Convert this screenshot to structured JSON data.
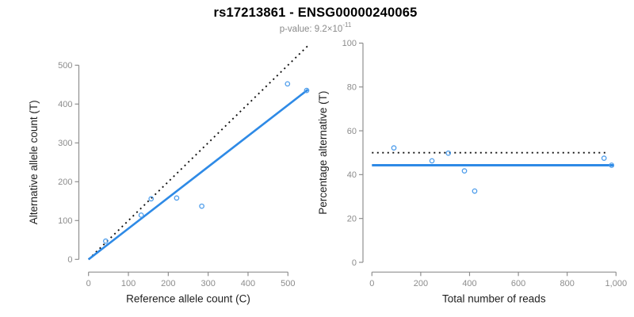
{
  "header": {
    "title": "rs17213861 - ENSG00000240065",
    "subtitle_main": "p-value: 9.2×10",
    "subtitle_exponent": "-11"
  },
  "colors": {
    "background": "#ffffff",
    "title": "#000000",
    "subtitle": "#8a8a8a",
    "axis_line": "#8f8f8f",
    "tick_label": "#8c8c8c",
    "axis_title": "#1f1f1f",
    "fit_line_blue": "#2e8ae6",
    "point_blue": "#4e9deb",
    "reference_line_black": "#111111"
  },
  "chart_data": [
    {
      "type": "scatter",
      "name": "allele-counts-scatter",
      "xlabel": "Reference allele count (C)",
      "ylabel": "Alternative allele count (T)",
      "xlim": [
        0,
        560
      ],
      "ylim": [
        0,
        560
      ],
      "grid": false,
      "legend": null,
      "x_ticks": [
        0,
        100,
        200,
        300,
        400,
        500
      ],
      "x_tick_labels": [
        "0",
        "100",
        "200",
        "300",
        "400",
        "500"
      ],
      "y_ticks": [
        0,
        100,
        200,
        300,
        400,
        500
      ],
      "y_tick_labels": [
        "0",
        "100",
        "200",
        "300",
        "400",
        "500"
      ],
      "points": [
        [
          43,
          47
        ],
        [
          132,
          114
        ],
        [
          157,
          156
        ],
        [
          221,
          158
        ],
        [
          284,
          137
        ],
        [
          499,
          452
        ],
        [
          547,
          435
        ]
      ],
      "lines": [
        {
          "name": "identity-line",
          "style": "dotted",
          "color": "reference_line_black",
          "width": 1.9,
          "x1": 0,
          "y1": 0,
          "x2": 551,
          "y2": 551
        },
        {
          "name": "fit-line",
          "style": "solid",
          "color": "fit_line_blue",
          "width": 2.6,
          "x1": 0,
          "y1": 0,
          "x2": 550,
          "y2": 437
        }
      ]
    },
    {
      "type": "scatter",
      "name": "percentage-vs-reads-scatter",
      "xlabel": "Total number of reads",
      "ylabel": "Percentage alternative (T)",
      "xlim": [
        0,
        1000
      ],
      "ylim": [
        0,
        100
      ],
      "grid": false,
      "legend": null,
      "x_ticks": [
        0,
        200,
        400,
        600,
        800,
        1000
      ],
      "x_tick_labels": [
        "0",
        "200",
        "400",
        "600",
        "800",
        "1,000"
      ],
      "y_ticks": [
        0,
        20,
        40,
        60,
        80,
        100
      ],
      "y_tick_labels": [
        "0",
        "20",
        "40",
        "60",
        "80",
        "100"
      ],
      "points": [
        [
          90,
          52.2
        ],
        [
          246,
          46.3
        ],
        [
          313,
          49.8
        ],
        [
          379,
          41.7
        ],
        [
          421,
          32.5
        ],
        [
          951,
          47.5
        ],
        [
          982,
          44.3
        ]
      ],
      "lines": [
        {
          "name": "fifty-percent-line",
          "style": "dotted",
          "color": "reference_line_black",
          "width": 1.9,
          "x1": 0,
          "y1": 50,
          "x2": 962,
          "y2": 50
        },
        {
          "name": "mean-percentage-line",
          "style": "solid",
          "color": "fit_line_blue",
          "width": 3,
          "x1": 0,
          "y1": 44.3,
          "x2": 990,
          "y2": 44.3
        }
      ]
    }
  ]
}
